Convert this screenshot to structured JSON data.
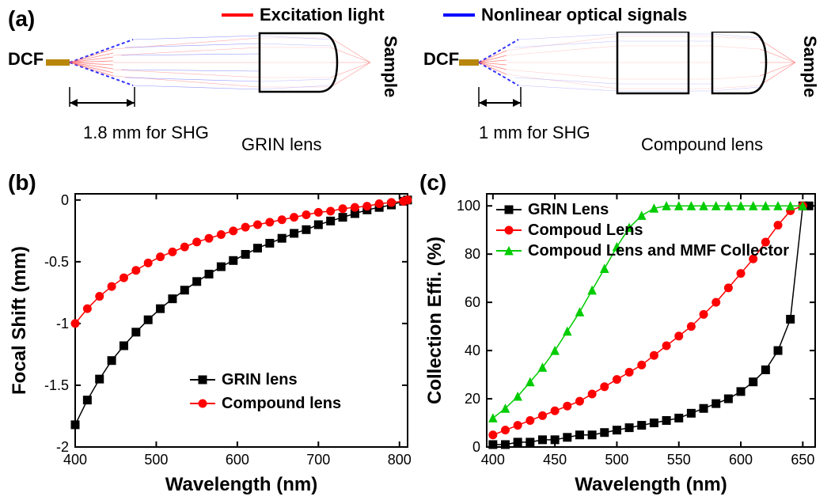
{
  "panel_labels": {
    "a": "(a)",
    "b": "(b)",
    "c": "(c)"
  },
  "top_legend": {
    "excitation": {
      "label": "Excitation light",
      "color": "#ff0000"
    },
    "nonlinear": {
      "label": "Nonlinear optical signals",
      "color": "#0000ff"
    }
  },
  "panel_a": {
    "dcf": "DCF",
    "sample": "Sample",
    "grin_dist": "1.8 mm for SHG",
    "grin_lens": "GRIN lens",
    "comp_dist": "1 mm for SHG",
    "comp_lens": "Compound lens",
    "colors": {
      "dcf_fiber": "#b8860b",
      "excitation": "#ff4d4d",
      "signal": "#4d4dff",
      "signal_dotted": "#3030ff",
      "lens_outline": "#000000"
    }
  },
  "chart_b": {
    "type": "line",
    "xlabel": "Wavelength (nm)",
    "ylabel": "Focal Shift (mm)",
    "xlim": [
      400,
      810
    ],
    "ylim": [
      -2.0,
      0.05
    ],
    "xticks": [
      400,
      500,
      600,
      700,
      800
    ],
    "yticks": [
      -2.0,
      -1.5,
      -1.0,
      -0.5,
      0.0
    ],
    "series": [
      {
        "name": "GRIN lens",
        "marker": "square",
        "color": "#000000",
        "x": [
          400,
          415,
          430,
          445,
          460,
          475,
          490,
          505,
          520,
          535,
          550,
          565,
          580,
          595,
          610,
          625,
          640,
          655,
          670,
          685,
          700,
          715,
          730,
          745,
          760,
          775,
          790,
          805,
          810
        ],
        "y": [
          -1.82,
          -1.62,
          -1.45,
          -1.3,
          -1.18,
          -1.07,
          -0.97,
          -0.88,
          -0.8,
          -0.73,
          -0.66,
          -0.6,
          -0.54,
          -0.49,
          -0.44,
          -0.39,
          -0.35,
          -0.31,
          -0.27,
          -0.24,
          -0.2,
          -0.17,
          -0.14,
          -0.11,
          -0.08,
          -0.06,
          -0.04,
          -0.01,
          0.0
        ]
      },
      {
        "name": "Compound lens",
        "marker": "circle",
        "color": "#ff0000",
        "x": [
          400,
          415,
          430,
          445,
          460,
          475,
          490,
          505,
          520,
          535,
          550,
          565,
          580,
          595,
          610,
          625,
          640,
          655,
          670,
          685,
          700,
          715,
          730,
          745,
          760,
          775,
          790,
          805,
          810
        ],
        "y": [
          -1.0,
          -0.88,
          -0.78,
          -0.7,
          -0.63,
          -0.57,
          -0.51,
          -0.46,
          -0.42,
          -0.38,
          -0.34,
          -0.31,
          -0.28,
          -0.25,
          -0.22,
          -0.2,
          -0.18,
          -0.16,
          -0.14,
          -0.12,
          -0.1,
          -0.09,
          -0.07,
          -0.06,
          -0.05,
          -0.03,
          -0.02,
          -0.01,
          0.0
        ]
      }
    ],
    "legend_labels": {
      "grin": "GRIN lens",
      "comp": "Compound lens"
    },
    "marker_size": 5,
    "line_width": 1.5,
    "background_color": "#ffffff",
    "axis_color": "#000000",
    "label_fontsize": 24,
    "tick_fontsize": 18
  },
  "chart_c": {
    "type": "line",
    "xlabel": "Wavelength (nm)",
    "ylabel": "Collection Effi. (%)",
    "xlim": [
      395,
      660
    ],
    "ylim": [
      0,
      105
    ],
    "xticks": [
      400,
      450,
      500,
      550,
      600,
      650
    ],
    "yticks": [
      0,
      20,
      40,
      60,
      80,
      100
    ],
    "series": [
      {
        "name": "GRIN Lens",
        "marker": "square",
        "color": "#000000",
        "x": [
          400,
          410,
          420,
          430,
          440,
          450,
          460,
          470,
          480,
          490,
          500,
          510,
          520,
          530,
          540,
          550,
          560,
          570,
          580,
          590,
          600,
          610,
          620,
          630,
          640,
          650,
          655
        ],
        "y": [
          1,
          1,
          2,
          2,
          3,
          3,
          4,
          5,
          5,
          6,
          7,
          8,
          9,
          10,
          11,
          12,
          14,
          16,
          18,
          20,
          23,
          27,
          32,
          40,
          53,
          100,
          100
        ]
      },
      {
        "name": "Compoud Lens",
        "marker": "circle",
        "color": "#ff0000",
        "x": [
          400,
          410,
          420,
          430,
          440,
          450,
          460,
          470,
          480,
          490,
          500,
          510,
          520,
          530,
          540,
          550,
          560,
          570,
          580,
          590,
          600,
          610,
          620,
          630,
          640,
          650
        ],
        "y": [
          5,
          7,
          9,
          11,
          13,
          15,
          17,
          19,
          22,
          25,
          28,
          31,
          34,
          38,
          42,
          46,
          50,
          55,
          60,
          66,
          72,
          78,
          85,
          92,
          98,
          100
        ]
      },
      {
        "name": "Compoud Lens and MMF Collector",
        "marker": "triangle",
        "color": "#00cc00",
        "x": [
          400,
          410,
          420,
          430,
          440,
          450,
          460,
          470,
          480,
          490,
          500,
          510,
          520,
          530,
          540,
          550,
          560,
          570,
          580,
          590,
          600,
          610,
          620,
          630,
          640,
          650
        ],
        "y": [
          12,
          16,
          21,
          27,
          33,
          40,
          48,
          56,
          65,
          74,
          83,
          91,
          96,
          99,
          100,
          100,
          100,
          100,
          100,
          100,
          100,
          100,
          100,
          100,
          100,
          100
        ]
      }
    ],
    "legend_labels": {
      "grin": "GRIN Lens",
      "comp": "Compoud Lens",
      "mmf": "Compoud Lens and MMF Collector"
    },
    "marker_size": 5,
    "line_width": 1.5,
    "background_color": "#ffffff",
    "axis_color": "#000000",
    "label_fontsize": 24,
    "tick_fontsize": 18
  }
}
